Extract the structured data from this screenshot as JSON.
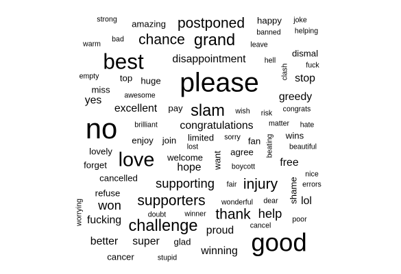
{
  "chart_data": {
    "type": "wordcloud",
    "text_color": "#000000",
    "background": "#ffffff",
    "words": [
      {
        "text": "strong",
        "weight": 1
      },
      {
        "text": "amazing",
        "weight": 2
      },
      {
        "text": "postponed",
        "weight": 5
      },
      {
        "text": "happy",
        "weight": 2
      },
      {
        "text": "joke",
        "weight": 1
      },
      {
        "text": "banned",
        "weight": 1
      },
      {
        "text": "helping",
        "weight": 1
      },
      {
        "text": "bad",
        "weight": 1
      },
      {
        "text": "chance",
        "weight": 5
      },
      {
        "text": "grand",
        "weight": 6
      },
      {
        "text": "warm",
        "weight": 1
      },
      {
        "text": "leave",
        "weight": 1
      },
      {
        "text": "dismal",
        "weight": 2
      },
      {
        "text": "best",
        "weight": 9
      },
      {
        "text": "disappointment",
        "weight": 3
      },
      {
        "text": "hell",
        "weight": 1
      },
      {
        "text": "fuck",
        "weight": 1
      },
      {
        "text": "clash",
        "weight": 1,
        "vertical": true
      },
      {
        "text": "empty",
        "weight": 1
      },
      {
        "text": "top",
        "weight": 2
      },
      {
        "text": "huge",
        "weight": 2
      },
      {
        "text": "please",
        "weight": 12
      },
      {
        "text": "stop",
        "weight": 3
      },
      {
        "text": "miss",
        "weight": 2
      },
      {
        "text": "awesome",
        "weight": 1
      },
      {
        "text": "greedy",
        "weight": 3
      },
      {
        "text": "yes",
        "weight": 3
      },
      {
        "text": "excellent",
        "weight": 3
      },
      {
        "text": "pay",
        "weight": 2
      },
      {
        "text": "slam",
        "weight": 6
      },
      {
        "text": "wish",
        "weight": 1
      },
      {
        "text": "risk",
        "weight": 1
      },
      {
        "text": "congrats",
        "weight": 1
      },
      {
        "text": "no",
        "weight": 13
      },
      {
        "text": "brilliant",
        "weight": 1
      },
      {
        "text": "congratulations",
        "weight": 3
      },
      {
        "text": "matter",
        "weight": 1
      },
      {
        "text": "hate",
        "weight": 1
      },
      {
        "text": "enjoy",
        "weight": 2
      },
      {
        "text": "join",
        "weight": 2
      },
      {
        "text": "limited",
        "weight": 2
      },
      {
        "text": "sorry",
        "weight": 1
      },
      {
        "text": "fan",
        "weight": 2
      },
      {
        "text": "beating",
        "weight": 1,
        "vertical": true
      },
      {
        "text": "wins",
        "weight": 2
      },
      {
        "text": "lost",
        "weight": 1
      },
      {
        "text": "beautiful",
        "weight": 1
      },
      {
        "text": "lovely",
        "weight": 2
      },
      {
        "text": "welcome",
        "weight": 2
      },
      {
        "text": "agree",
        "weight": 2
      },
      {
        "text": "love",
        "weight": 8
      },
      {
        "text": "forget",
        "weight": 2
      },
      {
        "text": "hope",
        "weight": 3
      },
      {
        "text": "want",
        "weight": 2,
        "vertical": true
      },
      {
        "text": "boycott",
        "weight": 1
      },
      {
        "text": "free",
        "weight": 3
      },
      {
        "text": "nice",
        "weight": 1
      },
      {
        "text": "cancelled",
        "weight": 2
      },
      {
        "text": "supporting",
        "weight": 4
      },
      {
        "text": "fair",
        "weight": 1
      },
      {
        "text": "injury",
        "weight": 5
      },
      {
        "text": "shame",
        "weight": 2,
        "vertical": true
      },
      {
        "text": "errors",
        "weight": 1
      },
      {
        "text": "refuse",
        "weight": 2
      },
      {
        "text": "lol",
        "weight": 3
      },
      {
        "text": "supporters",
        "weight": 5
      },
      {
        "text": "wonderful",
        "weight": 1
      },
      {
        "text": "dear",
        "weight": 1
      },
      {
        "text": "worrying",
        "weight": 1,
        "vertical": true
      },
      {
        "text": "won",
        "weight": 4
      },
      {
        "text": "thank",
        "weight": 5
      },
      {
        "text": "help",
        "weight": 4
      },
      {
        "text": "doubt",
        "weight": 1
      },
      {
        "text": "winner",
        "weight": 1
      },
      {
        "text": "poor",
        "weight": 1
      },
      {
        "text": "fucking",
        "weight": 3
      },
      {
        "text": "cancel",
        "weight": 1
      },
      {
        "text": "challenge",
        "weight": 6
      },
      {
        "text": "proud",
        "weight": 3
      },
      {
        "text": "good",
        "weight": 11
      },
      {
        "text": "better",
        "weight": 3
      },
      {
        "text": "super",
        "weight": 3
      },
      {
        "text": "glad",
        "weight": 2
      },
      {
        "text": "winning",
        "weight": 3
      },
      {
        "text": "cancer",
        "weight": 2
      },
      {
        "text": "stupid",
        "weight": 1
      }
    ]
  }
}
